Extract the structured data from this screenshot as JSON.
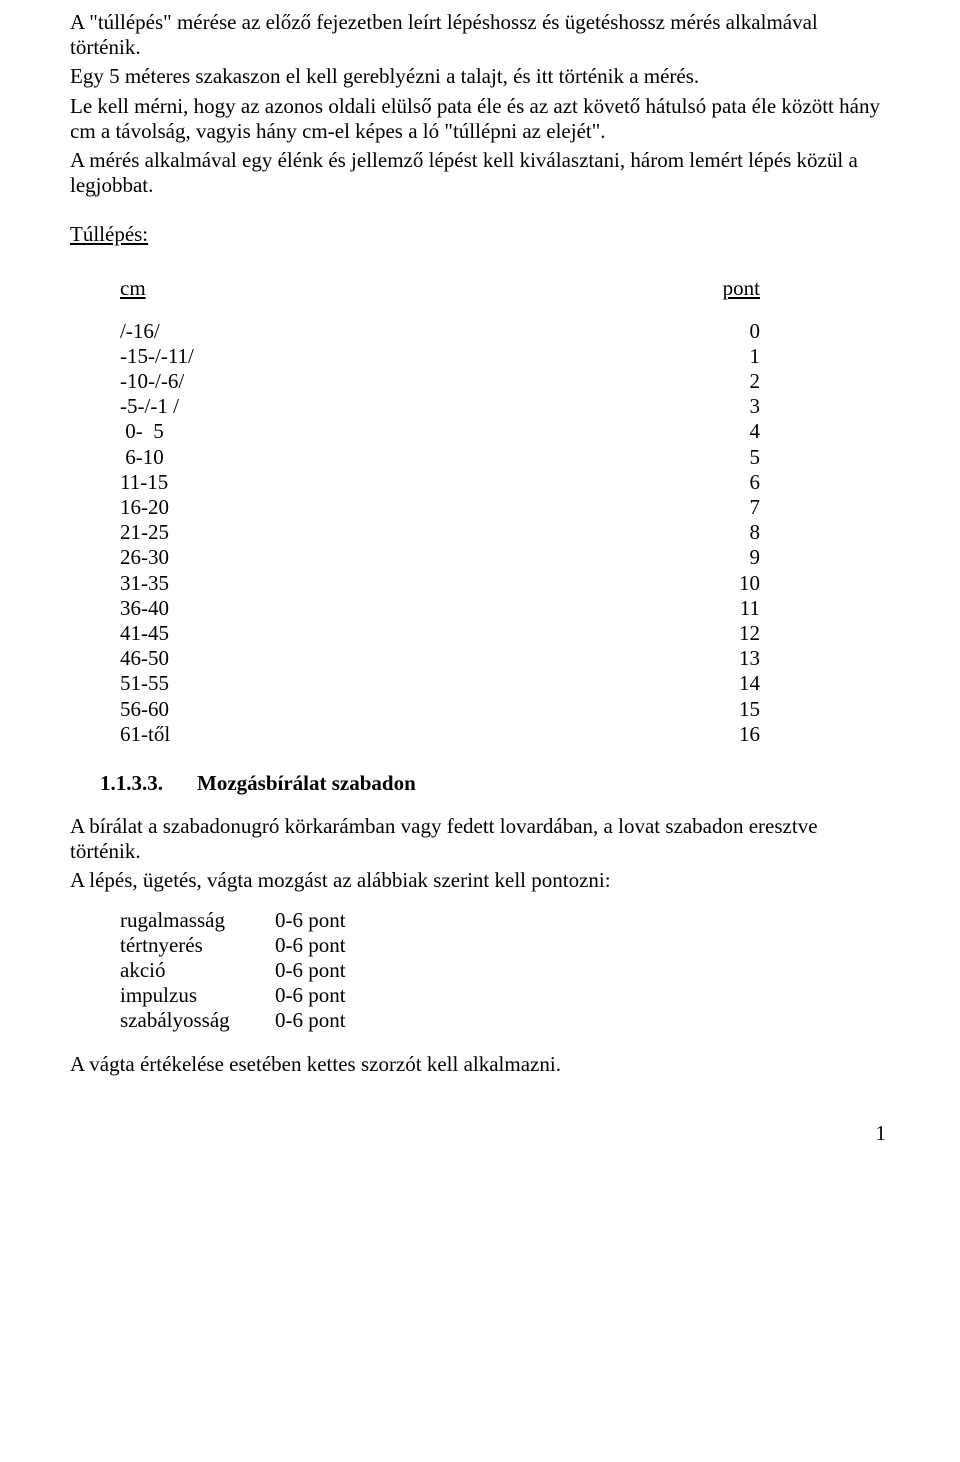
{
  "intro": {
    "p1": "A \"túllépés\" mérése az előző fejezetben leírt lépéshossz és ügetéshossz mérés alkalmával történik.",
    "p2": "Egy 5 méteres szakaszon el kell gereblyézni a talajt, és itt történik a mérés.",
    "p3": "Le kell mérni, hogy az azonos oldali elülső pata éle és az azt követő hátulsó pata éle között hány cm a távolság, vagyis hány cm-el képes a ló \"túllépni az elejét\".",
    "p4": "A mérés alkalmával egy élénk és jellemző lépést kell kiválasztani, három lemért lépés közül a legjobbat."
  },
  "tableTitle": "Túllépés:",
  "tableHead": {
    "left": "cm",
    "right": "pont"
  },
  "rows": [
    {
      "cm": "/-16/",
      "pt": "0"
    },
    {
      "cm": "-15-/-11/",
      "pt": "1"
    },
    {
      "cm": "-10-/-6/",
      "pt": "2"
    },
    {
      "cm": "-5-/-1 /",
      "pt": "3"
    },
    {
      "cm": " 0-  5",
      "pt": "4"
    },
    {
      "cm": " 6-10",
      "pt": "5"
    },
    {
      "cm": "11-15",
      "pt": "6"
    },
    {
      "cm": "16-20",
      "pt": "7"
    },
    {
      "cm": "21-25",
      "pt": "8"
    },
    {
      "cm": "26-30",
      "pt": "9"
    },
    {
      "cm": "31-35",
      "pt": "10"
    },
    {
      "cm": "36-40",
      "pt": "11"
    },
    {
      "cm": "41-45",
      "pt": "12"
    },
    {
      "cm": "46-50",
      "pt": "13"
    },
    {
      "cm": "51-55",
      "pt": "14"
    },
    {
      "cm": "56-60",
      "pt": "15"
    },
    {
      "cm": "61-től",
      "pt": "16"
    }
  ],
  "section": {
    "num": "1.1.3.3.",
    "title": "Mozgásbírálat szabadon"
  },
  "after": {
    "p1": "A bírálat a szabadonugró körkarámban vagy fedett lovardában, a lovat szabadon eresztve történik.",
    "p2": "A lépés, ügetés, vágta mozgást az alábbiak szerint kell pontozni:"
  },
  "scores": [
    {
      "label": "rugalmasság",
      "val": "0-6 pont"
    },
    {
      "label": "tértnyerés",
      "val": "0-6 pont"
    },
    {
      "label": "akció",
      "val": "0-6 pont"
    },
    {
      "label": "impulzus",
      "val": "0-6 pont"
    },
    {
      "label": "szabályosság",
      "val": "0-6 pont"
    }
  ],
  "closing": "A vágta értékelése esetében kettes szorzót kell alkalmazni.",
  "pageNumber": "1"
}
